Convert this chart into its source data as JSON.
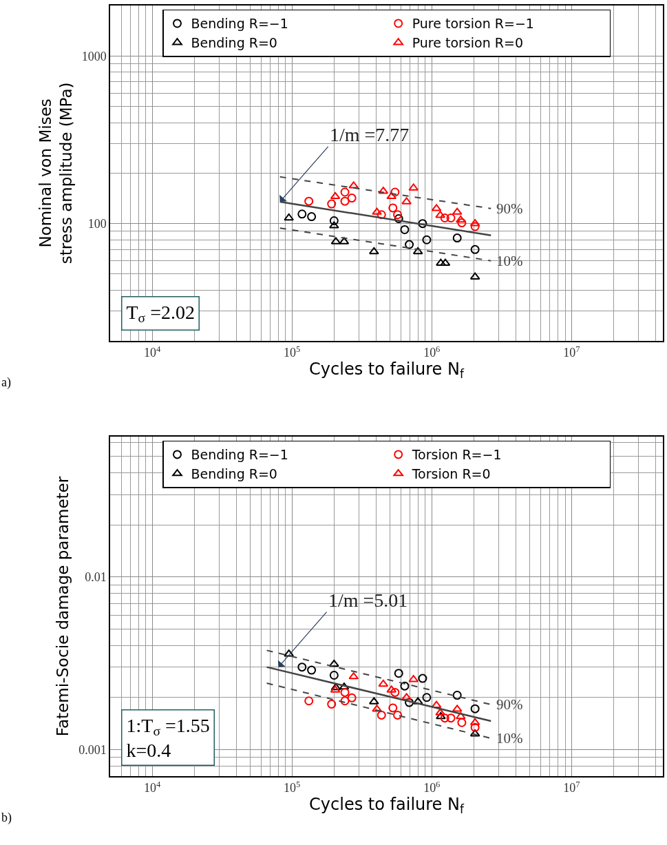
{
  "chart_data": [
    {
      "type": "scatter",
      "log": "xy",
      "grid": true,
      "legend": "top",
      "xlabel": "Cycles to failure N$_{f}$",
      "ylabel": "Nominal von Mises\nstress amplitude (MPa)",
      "xlim": [
        5000,
        45000000
      ],
      "ylim": [
        20,
        2000
      ],
      "xticks": [
        {
          "value": 10000,
          "label": "10$^{4}$"
        },
        {
          "value": 100000,
          "label": "10$^{5}$"
        },
        {
          "value": 1000000,
          "label": "10$^{6}$"
        },
        {
          "value": 10000000,
          "label": "10$^{7}$"
        }
      ],
      "yticks": [
        100,
        1000
      ],
      "annotations": [
        {
          "text": "1/m =7.77",
          "x": 82000,
          "y": 135
        },
        {
          "text": "90%",
          "x": 2650000,
          "y": 123
        },
        {
          "text": "10%",
          "x": 2650000,
          "y": 60
        },
        "T$_{σ}$ =2.02",
        "a)"
      ],
      "series": [
        {
          "name": "Bending R=−1",
          "color": "#000000",
          "marker": "circle",
          "x": [
            118000,
            138000,
            200000,
            580000,
            640000,
            690000,
            860000,
            920000,
            1520000,
            2040000
          ],
          "values": [
            114,
            110,
            104,
            107,
            92,
            75,
            100,
            80,
            82,
            70
          ]
        },
        {
          "name": "Bending R=0",
          "color": "#000000",
          "marker": "triangle",
          "x": [
            95000,
            200000,
            206000,
            236000,
            386000,
            796000,
            1160000,
            1250000,
            2040000
          ],
          "values": [
            108,
            97,
            78,
            78,
            68,
            68,
            58,
            58,
            48
          ]
        },
        {
          "name": "Pure torsion R=−1",
          "color": "#ff0000",
          "marker": "circle",
          "x": [
            132000,
            192000,
            239000,
            239000,
            268000,
            437000,
            527000,
            546000,
            569000,
            1240000,
            1370000,
            1640000,
            2040000
          ],
          "values": [
            136,
            131,
            154,
            136,
            142,
            113,
            124,
            154,
            113,
            108,
            108,
            101,
            96
          ]
        },
        {
          "name": "Pure torsion R=0",
          "color": "#ff0000",
          "marker": "triangle",
          "x": [
            204000,
            276000,
            405000,
            450000,
            515000,
            660000,
            740000,
            1080000,
            1150000,
            1520000,
            1610000,
            2040000
          ],
          "values": [
            145,
            168,
            117,
            156,
            145,
            135,
            163,
            123,
            112,
            117,
            105,
            100
          ]
        },
        {
          "type": "line",
          "color": "#444444",
          "line_style": "solid",
          "x": [
            82000,
            2650000
          ],
          "values": [
            135,
            85
          ]
        },
        {
          "type": "line",
          "color": "#444444",
          "line_style": "dashed",
          "x": [
            82000,
            2650000
          ],
          "values": [
            190,
            123
          ]
        },
        {
          "type": "line",
          "color": "#444444",
          "line_style": "dashed",
          "x": [
            82000,
            2650000
          ],
          "values": [
            94,
            60
          ]
        }
      ]
    },
    {
      "type": "scatter",
      "log": "xy",
      "grid": true,
      "legend": "top",
      "xlabel": "Cycles to failure N$_{f}$",
      "ylabel": "Fatemi-Socie damage parameter",
      "xlim": [
        5000,
        45000000
      ],
      "ylim": [
        0.0007,
        0.065
      ],
      "xticks": [
        {
          "value": 10000,
          "label": "10$^{4}$"
        },
        {
          "value": 100000,
          "label": "10$^{5}$"
        },
        {
          "value": 1000000,
          "label": "10$^{6}$"
        },
        {
          "value": 10000000,
          "label": "10$^{7}$"
        }
      ],
      "yticks": [
        0.001,
        0.01
      ],
      "annotations": [
        {
          "text": "1/m =5.01",
          "x": 80000,
          "y": 0.003
        },
        {
          "text": "90%",
          "x": 2650000,
          "y": 0.00182
        },
        {
          "text": "10%",
          "x": 2650000,
          "y": 0.00116
        },
        "1:T$_{σ}$ =1.55\nk=0.4",
        "b)"
      ],
      "series": [
        {
          "name": "Bending R=−1",
          "color": "#000000",
          "marker": "circle",
          "x": [
            118000,
            138000,
            200000,
            580000,
            640000,
            690000,
            860000,
            920000,
            1520000,
            2040000
          ],
          "values": [
            0.003,
            0.00288,
            0.00269,
            0.00276,
            0.00233,
            0.00187,
            0.00258,
            0.002,
            0.00206,
            0.00172
          ]
        },
        {
          "name": "Bending R=0",
          "color": "#000000",
          "marker": "triangle",
          "x": [
            95000,
            200000,
            206000,
            236000,
            386000,
            796000,
            1160000,
            1250000,
            2040000
          ],
          "values": [
            0.00357,
            0.00312,
            0.00228,
            0.0023,
            0.00189,
            0.00189,
            0.00155,
            null,
            0.00123
          ]
        },
        {
          "name": "Torsion R=−1",
          "color": "#ff0000",
          "marker": "circle",
          "x": [
            132000,
            192000,
            239000,
            239000,
            268000,
            437000,
            527000,
            546000,
            569000,
            1240000,
            1370000,
            1640000,
            2040000
          ],
          "values": [
            0.00191,
            0.00183,
            0.00214,
            0.00191,
            0.00199,
            0.00158,
            0.00174,
            0.00214,
            0.00158,
            0.00152,
            0.00152,
            0.00143,
            0.00134
          ]
        },
        {
          "name": "Torsion R=0",
          "color": "#ff0000",
          "marker": "triangle",
          "x": [
            204000,
            276000,
            405000,
            450000,
            515000,
            660000,
            740000,
            1080000,
            1150000,
            1520000,
            1610000,
            2040000
          ],
          "values": [
            0.00221,
            0.00264,
            0.00171,
            0.00239,
            0.00221,
            0.002,
            0.00254,
            0.0018,
            0.00163,
            0.00171,
            0.00155,
            0.00143
          ]
        },
        {
          "type": "line",
          "color": "#444444",
          "line_style": "solid",
          "x": [
            66000,
            2650000
          ],
          "values": [
            0.003,
            0.00146
          ]
        },
        {
          "type": "line",
          "color": "#444444",
          "line_style": "dashed",
          "x": [
            66000,
            2650000
          ],
          "values": [
            0.00375,
            0.00182
          ]
        },
        {
          "type": "line",
          "color": "#444444",
          "line_style": "dashed",
          "x": [
            66000,
            2650000
          ],
          "values": [
            0.00242,
            0.00116
          ]
        }
      ]
    }
  ]
}
